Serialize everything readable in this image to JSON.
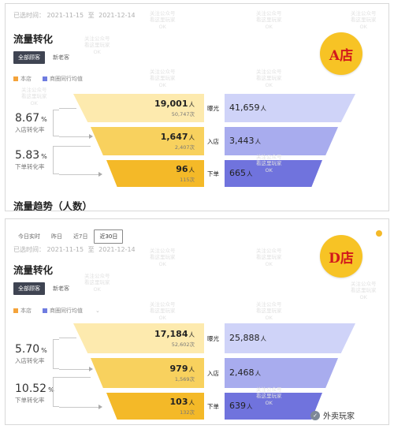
{
  "panel_a": {
    "date_label": "已选时间：",
    "date_start": "2021-11-15",
    "date_to": "至",
    "date_end": "2021-12-14",
    "title": "流量转化",
    "filter_all": "全部顾客",
    "filter_new": "新老客",
    "legend_store": "本店",
    "legend_peer": "商圈同行均值",
    "rate_enter": "8.67",
    "rate_enter_unit": "%",
    "rate_enter_label": "入店转化率",
    "rate_order": "5.83",
    "rate_order_unit": "%",
    "rate_order_label": "下单转化率",
    "stage_exposure": "曝光",
    "stage_enter": "入店",
    "stage_order": "下单",
    "exposure_people": "19,001",
    "exposure_times": "50,747次",
    "enter_people": "1,647",
    "enter_times": "2,407次",
    "order_people": "96",
    "order_times": "115次",
    "peer_exposure": "41,659",
    "peer_enter": "3,443",
    "peer_order": "665",
    "unit_people": "人",
    "badge": "A店",
    "trend_title": "流量趋势（人数）"
  },
  "panel_d": {
    "tab_realtime": "今日实时",
    "tab_yesterday": "昨日",
    "tab_7d": "近7日",
    "tab_30d": "近30日",
    "date_label": "已选时间：",
    "date_start": "2021-11-15",
    "date_to": "至",
    "date_end": "2021-12-14",
    "title": "流量转化",
    "filter_all": "全部顾客",
    "filter_new": "新老客",
    "legend_store": "本店",
    "legend_peer": "商圈同行均值",
    "rate_enter": "5.70",
    "rate_enter_unit": "%",
    "rate_enter_label": "入店转化率",
    "rate_order": "10.52",
    "rate_order_unit": "%",
    "rate_order_label": "下单转化率",
    "stage_exposure": "曝光",
    "stage_enter": "入店",
    "stage_order": "下单",
    "exposure_people": "17,184",
    "exposure_times": "52,602次",
    "enter_people": "979",
    "enter_times": "1,569次",
    "order_people": "103",
    "order_times": "132次",
    "peer_exposure": "25,888",
    "peer_enter": "2,468",
    "peer_order": "639",
    "unit_people": "人",
    "badge": "D店"
  },
  "watermark": {
    "line1": "关注公众号",
    "line2": "看这里玩家",
    "line3": "OK"
  },
  "footer": {
    "logo_text": "外卖玩家",
    "icon": "wechat-icon"
  },
  "colors": {
    "accent_dark": "#3f4452",
    "store_light": "#fdeaae",
    "store_mid": "#f8d15e",
    "store_dark": "#f4b928",
    "peer_light": "#cfd3f8",
    "peer_mid": "#a8acee",
    "peer_dark": "#7073dd",
    "badge_bg": "#f7c325",
    "badge_text": "#d2181c"
  }
}
